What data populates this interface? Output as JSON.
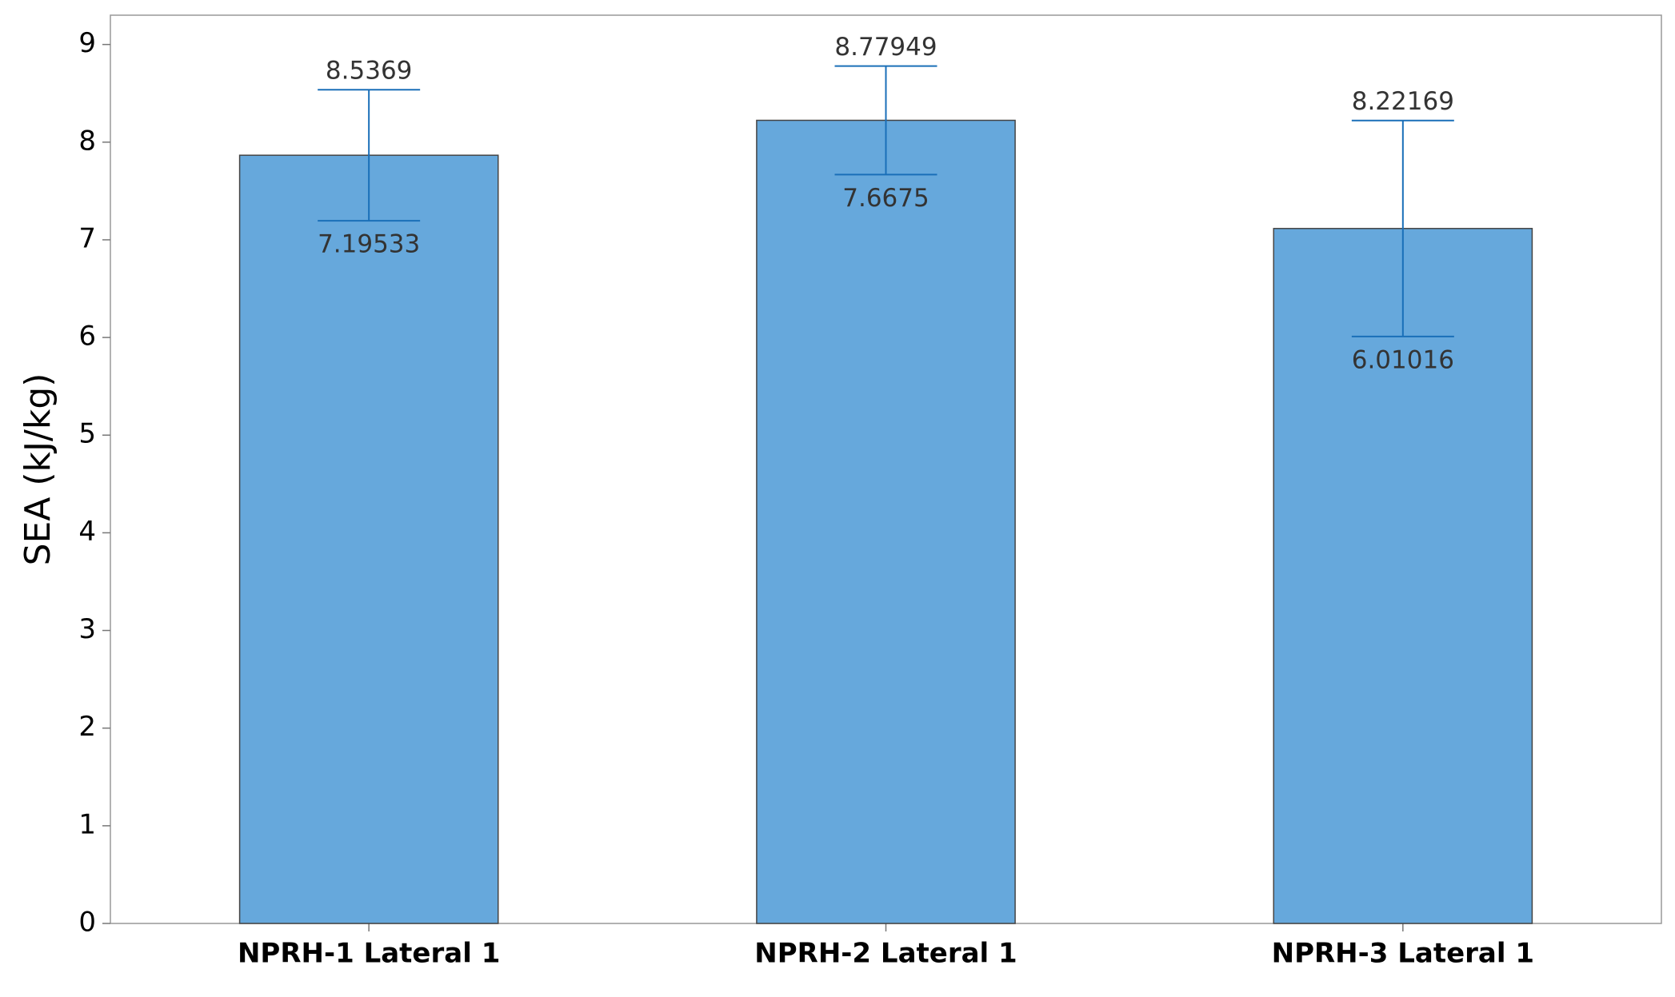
{
  "chart_data": {
    "type": "bar",
    "y_label": "SEA (kJ/kg)",
    "categories": [
      "NPRH-1 Lateral 1",
      "NPRH-2 Lateral 1",
      "NPRH-3 Lateral 1"
    ],
    "values": [
      7.866,
      8.2235,
      7.1159
    ],
    "upper": [
      8.5369,
      8.77949,
      8.22169
    ],
    "lower": [
      7.19533,
      7.6675,
      6.01016
    ],
    "color": "#66a8dc",
    "error_color": "#1a6fb8",
    "ylim": [
      0,
      9.3
    ],
    "yticks": [
      0,
      1,
      2,
      3,
      4,
      5,
      6,
      7,
      8,
      9
    ]
  }
}
